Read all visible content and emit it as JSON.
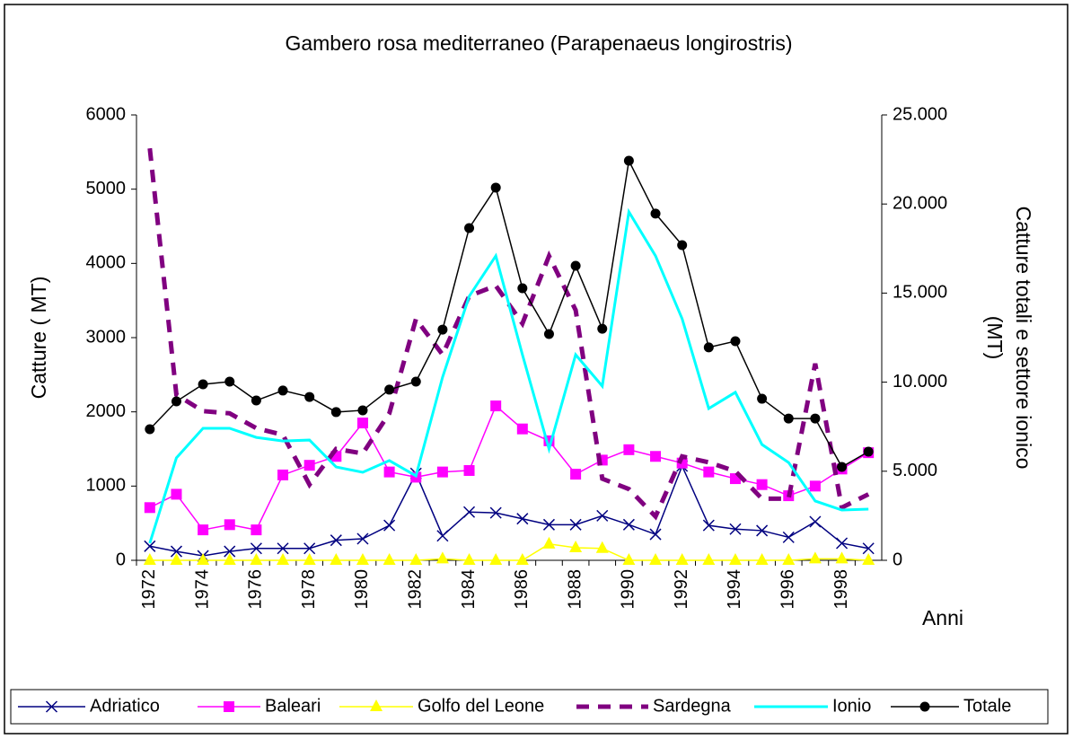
{
  "chart_data": {
    "type": "line",
    "title": "Gambero rosa mediterraneo (Parapenaeus longirostris)",
    "ylabel": "Catture ( MT)",
    "y2label": [
      "Catture totali e settore ionico",
      "(MT)"
    ],
    "xlabel": "Anni",
    "categories": [
      "1972",
      null,
      "1974",
      null,
      "1976",
      null,
      "1978",
      null,
      "1980",
      null,
      "1982",
      null,
      "1984",
      null,
      "1986",
      null,
      "1988",
      null,
      "1990",
      null,
      "1992",
      null,
      "1994",
      null,
      "1996",
      null,
      "1998",
      null
    ],
    "ylim": [
      0,
      6000
    ],
    "yticks": [
      0,
      1000,
      2000,
      3000,
      4000,
      5000,
      6000
    ],
    "y2lim": [
      0,
      25000
    ],
    "y2ticks": [
      0,
      {
        "value": 5000,
        "label": "5.000"
      },
      {
        "value": 10000,
        "label": "10.000"
      },
      {
        "value": 15000,
        "label": "15.000"
      },
      {
        "value": 20000,
        "label": "20.000"
      },
      {
        "value": 25000,
        "label": "25.000"
      }
    ],
    "grid": false,
    "legend": "bottom",
    "series": [
      {
        "name": "Adriatico",
        "color": "#000080",
        "marker": "x",
        "values": [
          190,
          120,
          60,
          120,
          160,
          160,
          160,
          270,
          290,
          470,
          1170,
          330,
          650,
          640,
          560,
          480,
          480,
          600,
          480,
          350,
          1270,
          470,
          420,
          400,
          310,
          520,
          230,
          160
        ]
      },
      {
        "name": "Baleari",
        "color": "#ff00ff",
        "marker": "square",
        "values": [
          710,
          890,
          410,
          480,
          410,
          1150,
          1280,
          1400,
          1850,
          1190,
          1120,
          1190,
          1210,
          2080,
          1770,
          1610,
          1160,
          1350,
          1490,
          1400,
          1310,
          1190,
          1100,
          1020,
          870,
          1000,
          1230,
          1450
        ]
      },
      {
        "name": "Golfo del Leone",
        "color": "#ffff00",
        "marker": "triangle",
        "values": [
          0,
          0,
          0,
          0,
          0,
          0,
          0,
          0,
          0,
          0,
          0,
          20,
          0,
          0,
          0,
          220,
          170,
          160,
          0,
          0,
          0,
          0,
          0,
          0,
          0,
          20,
          20,
          0
        ]
      },
      {
        "name": "Sardegna",
        "color": "#800080",
        "dash": true,
        "values": [
          5550,
          2230,
          2010,
          1980,
          1780,
          1690,
          1020,
          1500,
          1440,
          1980,
          3250,
          2770,
          3560,
          3700,
          3190,
          4100,
          3370,
          1100,
          960,
          590,
          1400,
          1320,
          1200,
          830,
          830,
          2650,
          710,
          890
        ]
      },
      {
        "name": "Ionio",
        "color": "#00ffff",
        "axis": "y2",
        "values": [
          960,
          5750,
          7410,
          7410,
          6900,
          6700,
          6750,
          5240,
          4940,
          5600,
          4740,
          10280,
          14820,
          17090,
          11540,
          6250,
          11540,
          9780,
          19560,
          17090,
          13560,
          8520,
          9430,
          6500,
          5490,
          3330,
          2820,
          2870
        ]
      },
      {
        "name": "Totale",
        "color": "#000000",
        "marker": "circle",
        "axis": "y2",
        "values": [
          7360,
          8920,
          9880,
          10030,
          8970,
          9530,
          9170,
          8320,
          8420,
          9580,
          10030,
          12950,
          18650,
          20920,
          15270,
          12700,
          16530,
          13000,
          22430,
          19460,
          17690,
          11950,
          12300,
          9070,
          7960,
          7960,
          5240,
          6100
        ]
      }
    ]
  }
}
